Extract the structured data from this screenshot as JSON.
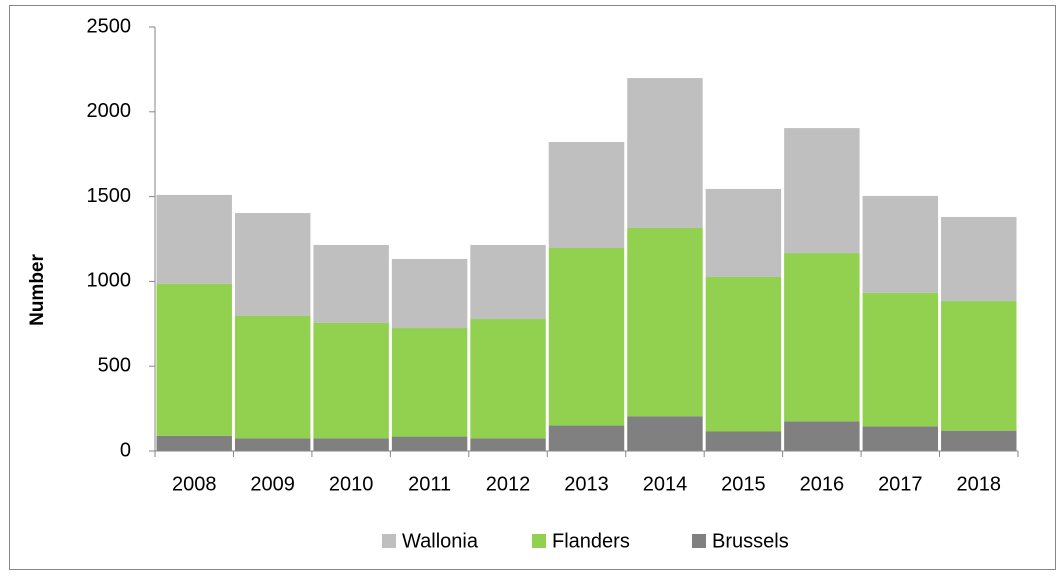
{
  "chart_data": {
    "type": "stacked_bar",
    "y_label": "Number",
    "categories": [
      "2008",
      "2009",
      "2010",
      "2011",
      "2012",
      "2013",
      "2014",
      "2015",
      "2016",
      "2017",
      "2018"
    ],
    "series": [
      {
        "name": "Brussels",
        "color": "#808080",
        "values": [
          90,
          75,
          75,
          85,
          75,
          150,
          205,
          115,
          175,
          145,
          120
        ]
      },
      {
        "name": "Flanders",
        "color": "#92d050",
        "values": [
          895,
          721,
          680,
          640,
          703,
          1047,
          1110,
          911,
          992,
          787,
          764
        ]
      },
      {
        "name": "Wallonia",
        "color": "#bfbfbf",
        "values": [
          525,
          607,
          460,
          407,
          437,
          625,
          884,
          519,
          737,
          572,
          496
        ]
      }
    ],
    "ylim": [
      0,
      2500
    ],
    "yticks": [
      0,
      500,
      1000,
      1500,
      2000,
      2500
    ],
    "legend": "bottom"
  }
}
